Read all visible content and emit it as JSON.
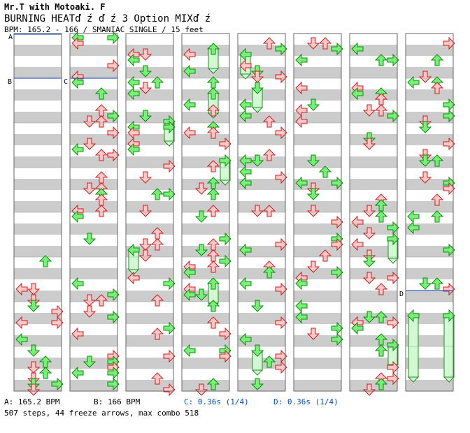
{
  "header": {
    "artist": "Mr.T with Motoaki. F",
    "title": "BURNING HEATď ź ď ź 3 Option MIXď ź",
    "meta": "BPM: 165.2 - 166 / SMANIAC SINGLE / 15 feet"
  },
  "markers": {
    "a": "A",
    "b": "B",
    "c": "C",
    "d": "D"
  },
  "footer": {
    "a_text": "A: 165.2 BPM",
    "b_text": "B: 166 BPM",
    "c_text": "C: 0.36s (1/4)",
    "d_text": "D: 0.36s (1/4)",
    "summary": "507 steps, 44 freeze arrows, max combo 518"
  },
  "colors": {
    "arrow_red_fill": "#ffc8c8",
    "arrow_red_stroke": "#c81e1e",
    "arrow_green_fill": "#78f078",
    "arrow_green_stroke": "#0a8c0a",
    "freeze_fill": "#d2fad2",
    "freeze_stroke": "#1e8c1e",
    "stripe": "#cccccc",
    "line_blue": "#3060c0",
    "c_d_text": "#0050c8"
  },
  "chart": {
    "columns": 8,
    "measures_per_column": 8,
    "total_steps": 507,
    "freeze_arrows": 44,
    "max_combo": 518
  }
}
